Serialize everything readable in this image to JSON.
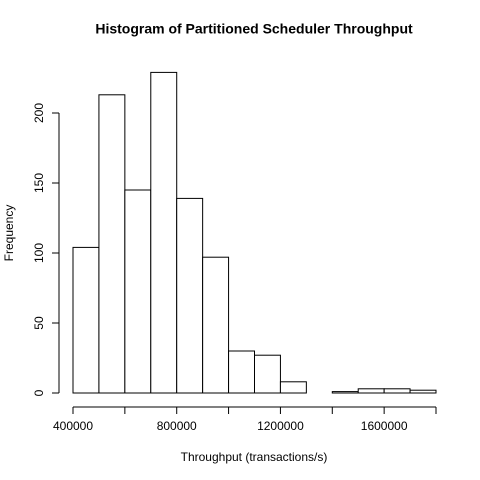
{
  "chart_data": {
    "type": "histogram",
    "title": "Histogram of Partitioned Scheduler Throughput",
    "xlabel": "Throughput (transactions/s)",
    "ylabel": "Frequency",
    "bins": [
      400000,
      500000,
      600000,
      700000,
      800000,
      900000,
      1000000,
      1100000,
      1200000,
      1300000,
      1400000,
      1500000,
      1600000,
      1700000,
      1800000
    ],
    "values": [
      104,
      213,
      145,
      229,
      139,
      97,
      30,
      27,
      8,
      0,
      1,
      3,
      3,
      2
    ],
    "color": "#ffffff",
    "edge_color": "#000000",
    "xlim": [
      400000,
      1800000
    ],
    "ylim": [
      0,
      229
    ],
    "xticks": [
      400000,
      800000,
      1200000,
      1600000
    ],
    "xminor_ticks": [
      600000,
      1000000,
      1400000,
      1800000
    ],
    "yticks": [
      0,
      50,
      100,
      150,
      200
    ]
  }
}
